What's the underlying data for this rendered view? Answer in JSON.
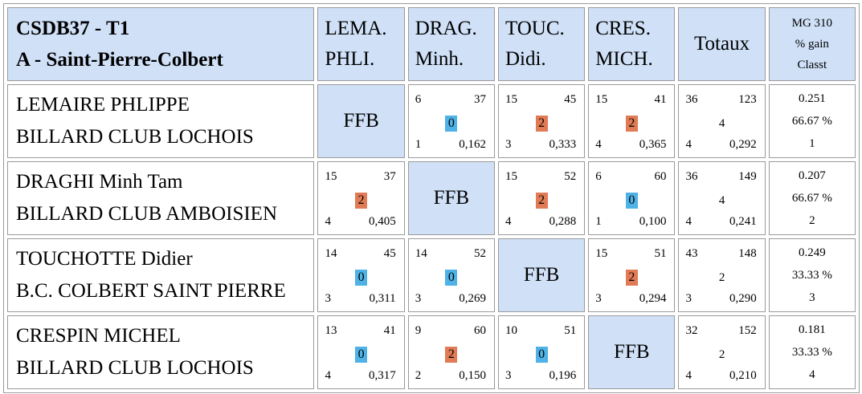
{
  "header": {
    "title_line1": "CSDB37 - T1",
    "title_line2": "A - Saint-Pierre-Colbert",
    "players": [
      {
        "line1": "LEMA.",
        "line2": "PHLI."
      },
      {
        "line1": "DRAG.",
        "line2": "Minh."
      },
      {
        "line1": "TOUC.",
        "line2": "Didi."
      },
      {
        "line1": "CRES.",
        "line2": "MICH."
      }
    ],
    "totaux": "Totaux",
    "mg_line1": "MG 310",
    "mg_line2": "% gain",
    "mg_line3": "Classt"
  },
  "colors": {
    "header_bg": "#cfe0f7",
    "win": "#e07b56",
    "loss": "#4fb2e6",
    "border": "#9a9a9a"
  },
  "rows": [
    {
      "name": "LEMAIRE PHLIPPE",
      "club": "BILLARD CLUB LOCHOIS",
      "cells": [
        {
          "ffb": "FFB"
        },
        {
          "tl": "6",
          "tr": "37",
          "pts": "0",
          "bl": "1",
          "br": "0,162"
        },
        {
          "tl": "15",
          "tr": "45",
          "pts": "2",
          "bl": "3",
          "br": "0,333"
        },
        {
          "tl": "15",
          "tr": "41",
          "pts": "2",
          "bl": "4",
          "br": "0,365"
        }
      ],
      "total": {
        "tl": "36",
        "tr": "123",
        "mid": "4",
        "bl": "4",
        "br": "0,292"
      },
      "mg": {
        "moy": "0.251",
        "pct": "66.67 %",
        "rank": "1"
      }
    },
    {
      "name": "DRAGHI Minh Tam",
      "club": "BILLARD CLUB AMBOISIEN",
      "cells": [
        {
          "tl": "15",
          "tr": "37",
          "pts": "2",
          "bl": "4",
          "br": "0,405"
        },
        {
          "ffb": "FFB"
        },
        {
          "tl": "15",
          "tr": "52",
          "pts": "2",
          "bl": "4",
          "br": "0,288"
        },
        {
          "tl": "6",
          "tr": "60",
          "pts": "0",
          "bl": "1",
          "br": "0,100"
        }
      ],
      "total": {
        "tl": "36",
        "tr": "149",
        "mid": "4",
        "bl": "4",
        "br": "0,241"
      },
      "mg": {
        "moy": "0.207",
        "pct": "66.67 %",
        "rank": "2"
      }
    },
    {
      "name": "TOUCHOTTE Didier",
      "club": "B.C. COLBERT SAINT PIERRE",
      "cells": [
        {
          "tl": "14",
          "tr": "45",
          "pts": "0",
          "bl": "3",
          "br": "0,311"
        },
        {
          "tl": "14",
          "tr": "52",
          "pts": "0",
          "bl": "3",
          "br": "0,269"
        },
        {
          "ffb": "FFB"
        },
        {
          "tl": "15",
          "tr": "51",
          "pts": "2",
          "bl": "3",
          "br": "0,294"
        }
      ],
      "total": {
        "tl": "43",
        "tr": "148",
        "mid": "2",
        "bl": "3",
        "br": "0,290"
      },
      "mg": {
        "moy": "0.249",
        "pct": "33.33 %",
        "rank": "3"
      }
    },
    {
      "name": "CRESPIN MICHEL",
      "club": "BILLARD CLUB LOCHOIS",
      "cells": [
        {
          "tl": "13",
          "tr": "41",
          "pts": "0",
          "bl": "4",
          "br": "0,317"
        },
        {
          "tl": "9",
          "tr": "60",
          "pts": "2",
          "bl": "2",
          "br": "0,150"
        },
        {
          "tl": "10",
          "tr": "51",
          "pts": "0",
          "bl": "3",
          "br": "0,196"
        },
        {
          "ffb": "FFB"
        }
      ],
      "total": {
        "tl": "32",
        "tr": "152",
        "mid": "2",
        "bl": "4",
        "br": "0,210"
      },
      "mg": {
        "moy": "0.181",
        "pct": "33.33 %",
        "rank": "4"
      }
    }
  ]
}
